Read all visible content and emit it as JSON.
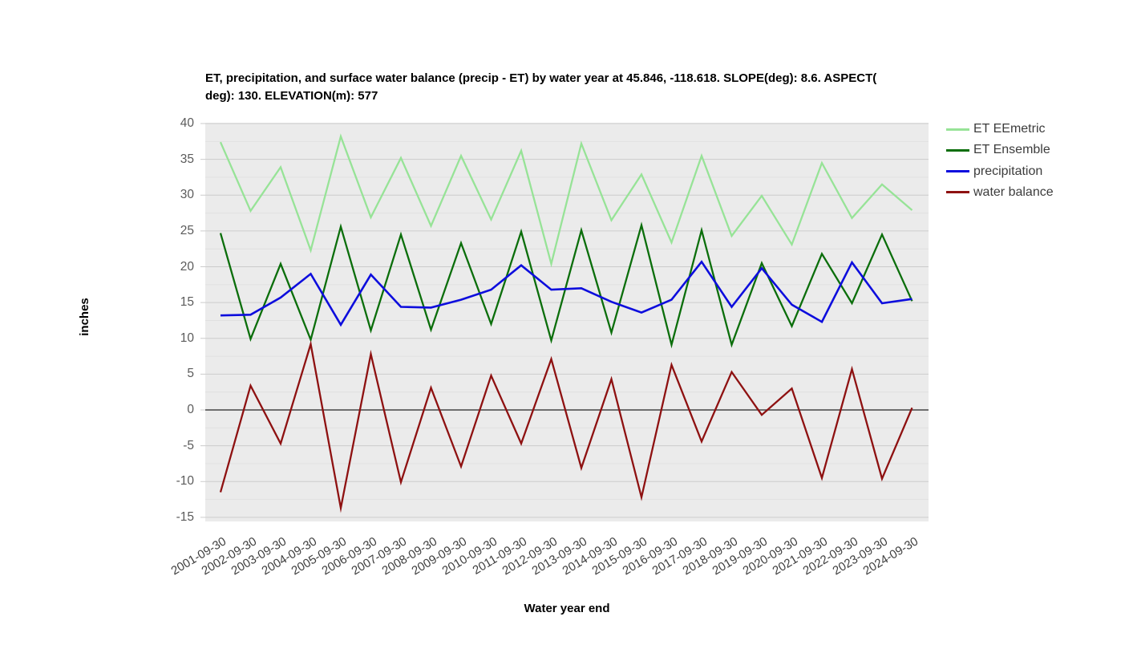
{
  "page": {
    "background": "#ffffff"
  },
  "chart_data": {
    "type": "line",
    "title": "ET, precipitation, and surface water balance (precip - ET) by water year at 45.846, -118.618. SLOPE(deg): 8.6. ASPECT(deg): 130. ELEVATION(m): 577",
    "title_lines": [
      "ET, precipitation, and surface water balance (precip - ET) by water year at 45.846, -118.618. SLOPE(deg): 8.6. ASPECT(",
      "deg): 130. ELEVATION(m): 577"
    ],
    "xlabel": "Water year end",
    "ylabel": "inches",
    "ylim": [
      -15,
      40
    ],
    "y_major_ticks": [
      40,
      35,
      30,
      25,
      20,
      15,
      10,
      5,
      0,
      -5,
      -10,
      -15
    ],
    "y_minor_step": 2.5,
    "grid": true,
    "legend_position": "right",
    "categories": [
      "2001-09-30",
      "2002-09-30",
      "2003-09-30",
      "2004-09-30",
      "2005-09-30",
      "2006-09-30",
      "2007-09-30",
      "2008-09-30",
      "2009-09-30",
      "2010-09-30",
      "2011-09-30",
      "2012-09-30",
      "2013-09-30",
      "2014-09-30",
      "2015-09-30",
      "2016-09-30",
      "2017-09-30",
      "2018-09-30",
      "2019-09-30",
      "2020-09-30",
      "2021-09-30",
      "2022-09-30",
      "2023-09-30",
      "2024-09-30"
    ],
    "series": [
      {
        "name": "ET EEmetric",
        "color": "#97e397",
        "stroke_width": 2.3,
        "values": [
          37.4,
          27.8,
          33.9,
          22.3,
          38.2,
          26.9,
          35.2,
          25.7,
          35.5,
          26.6,
          36.2,
          20.4,
          37.2,
          26.5,
          32.9,
          23.4,
          35.5,
          24.3,
          29.9,
          23.1,
          34.5,
          26.8,
          31.5,
          27.9
        ]
      },
      {
        "name": "ET Ensemble",
        "color": "#0b6e0b",
        "stroke_width": 2.3,
        "values": [
          24.7,
          9.9,
          20.4,
          9.8,
          25.6,
          11.1,
          24.5,
          11.2,
          23.3,
          12.0,
          24.9,
          9.7,
          25.1,
          10.8,
          25.8,
          9.1,
          25.1,
          9.1,
          20.5,
          11.7,
          21.8,
          14.9,
          24.5,
          15.2
        ]
      },
      {
        "name": "precipitation",
        "color": "#0d0ddd",
        "stroke_width": 2.6,
        "values": [
          13.2,
          13.3,
          15.7,
          19.0,
          11.9,
          18.9,
          14.4,
          14.3,
          15.4,
          16.8,
          20.2,
          16.8,
          17.0,
          15.1,
          13.6,
          15.4,
          20.7,
          14.4,
          19.8,
          14.7,
          12.3,
          20.6,
          14.9,
          15.5
        ]
      },
      {
        "name": "water balance",
        "color": "#8e1111",
        "stroke_width": 2.3,
        "values": [
          -11.5,
          3.4,
          -4.7,
          9.2,
          -13.7,
          7.8,
          -10.1,
          3.1,
          -7.9,
          4.8,
          -4.7,
          7.1,
          -8.1,
          4.3,
          -12.2,
          6.3,
          -4.4,
          5.3,
          -0.7,
          3.0,
          -9.5,
          5.7,
          -9.6,
          0.3
        ]
      }
    ],
    "colors": {
      "plot_background": "#ebebeb",
      "grid_major": "#cccccc",
      "grid_minor": "#e0e0e0",
      "zero_line": "#444444",
      "y_tick_text": "#5b5b5b",
      "x_tick_text": "#3e3e3e",
      "legend_text": "#3c3c3c",
      "title_text": "#000000"
    }
  }
}
